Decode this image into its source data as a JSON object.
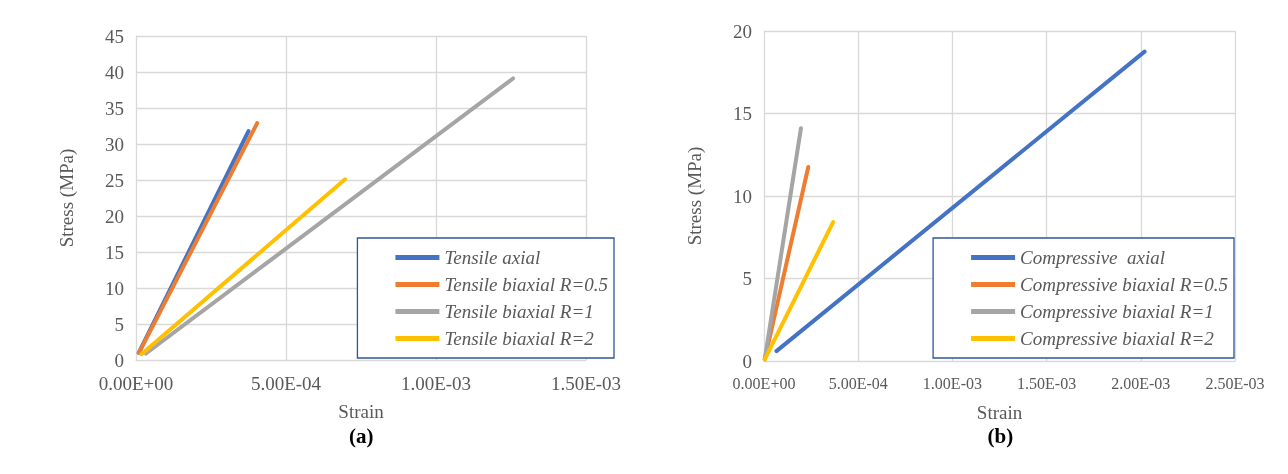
{
  "chart_data": [
    {
      "type": "line",
      "xlabel": "Strain",
      "ylabel": "Stress (MPa)",
      "annotations": [
        "(a)"
      ],
      "xlim": [
        0,
        0.0015
      ],
      "xticks": [
        {
          "value": 0,
          "label": "0.00E+00"
        },
        {
          "value": 0.0005,
          "label": "5.00E-04"
        },
        {
          "value": 0.001,
          "label": "1.00E-03"
        },
        {
          "value": 0.0015,
          "label": "1.50E-03"
        }
      ],
      "ylim": [
        0,
        45
      ],
      "yticks": [
        0,
        5,
        10,
        15,
        20,
        25,
        30,
        35,
        40,
        45
      ],
      "grid": true,
      "legend": "bottom right",
      "marker": "none",
      "line_style": "solid",
      "series": [
        {
          "name": "Tensile axial",
          "color": "#4472c4",
          "x": [
            9e-06,
            0.000375
          ],
          "values": [
            1.0,
            31.8
          ]
        },
        {
          "name": "Tensile biaxial R=0.5",
          "color": "#ed7d31",
          "x": [
            1e-05,
            0.000404
          ],
          "values": [
            1.0,
            32.9
          ]
        },
        {
          "name": "Tensile biaxial R=1",
          "color": "#a5a5a5",
          "x": [
            3.3e-05,
            0.001257
          ],
          "values": [
            0.9,
            39.1
          ]
        },
        {
          "name": "Tensile biaxial R=2",
          "color": "#ffc000",
          "x": [
            1.8e-05,
            0.000697
          ],
          "values": [
            0.8,
            25.1
          ]
        }
      ]
    },
    {
      "type": "line",
      "xlabel": "Strain",
      "ylabel": "Stress (MPa)",
      "annotations": [
        "(b)"
      ],
      "xlim": [
        0,
        0.0025
      ],
      "xticks": [
        {
          "value": 0,
          "label": "0.00E+00"
        },
        {
          "value": 0.0005,
          "label": "5.00E-04"
        },
        {
          "value": 0.001,
          "label": "1.00E-03"
        },
        {
          "value": 0.0015,
          "label": "1.50E-03"
        },
        {
          "value": 0.002,
          "label": "2.00E-03"
        },
        {
          "value": 0.0025,
          "label": "2.50E-03"
        }
      ],
      "ylim": [
        0,
        20
      ],
      "yticks": [
        0,
        5,
        10,
        15,
        20
      ],
      "grid": true,
      "legend": "bottom right",
      "marker": "none",
      "line_style": "solid",
      "series": [
        {
          "name": "Compressive  axial",
          "color": "#4472c4",
          "x": [
            6.6e-05,
            0.00202
          ],
          "values": [
            0.6,
            18.75
          ]
        },
        {
          "name": "Compressive biaxial R=0.5",
          "color": "#ed7d31",
          "x": [
            4e-06,
            0.000235
          ],
          "values": [
            0.1,
            11.76
          ]
        },
        {
          "name": "Compressive biaxial R=1",
          "color": "#a5a5a5",
          "x": [
            4e-06,
            0.000196
          ],
          "values": [
            0.1,
            14.1
          ]
        },
        {
          "name": "Compressive biaxial R=2",
          "color": "#ffc000",
          "x": [
            4e-06,
            0.000367
          ],
          "values": [
            0.1,
            8.42
          ]
        }
      ]
    }
  ]
}
